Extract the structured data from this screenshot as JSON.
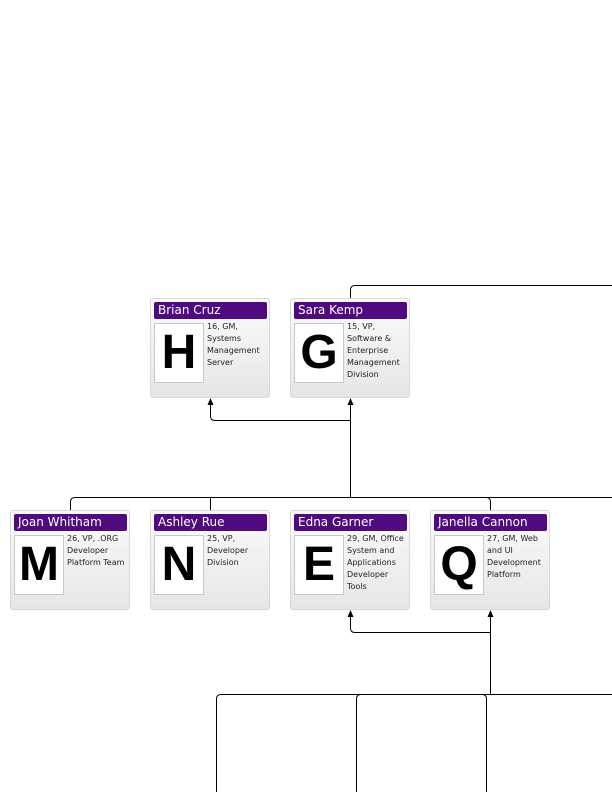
{
  "nodes": [
    {
      "id": "brian-cruz",
      "name": "Brian Cruz",
      "letter": "H",
      "details": "16, GM, Systems Management Server"
    },
    {
      "id": "sara-kemp",
      "name": "Sara Kemp",
      "letter": "G",
      "details": "15, VP, Software & Enterprise Management Division"
    },
    {
      "id": "joan-whitham",
      "name": "Joan Whitham",
      "letter": "M",
      "details": "26, VP, .ORG Developer Platform Team"
    },
    {
      "id": "ashley-rue",
      "name": "Ashley Rue",
      "letter": "N",
      "details": "25, VP, Developer Division"
    },
    {
      "id": "edna-garner",
      "name": "Edna Garner",
      "letter": "E",
      "details": "29, GM, Office System and Applications Developer Tools"
    },
    {
      "id": "janella-cannon",
      "name": "Janella Cannon",
      "letter": "Q",
      "details": "27, GM, Web and UI Development Platform"
    }
  ],
  "colors": {
    "header": "#4e0a7e",
    "header_text": "#ffffff",
    "connector": "#000000"
  }
}
